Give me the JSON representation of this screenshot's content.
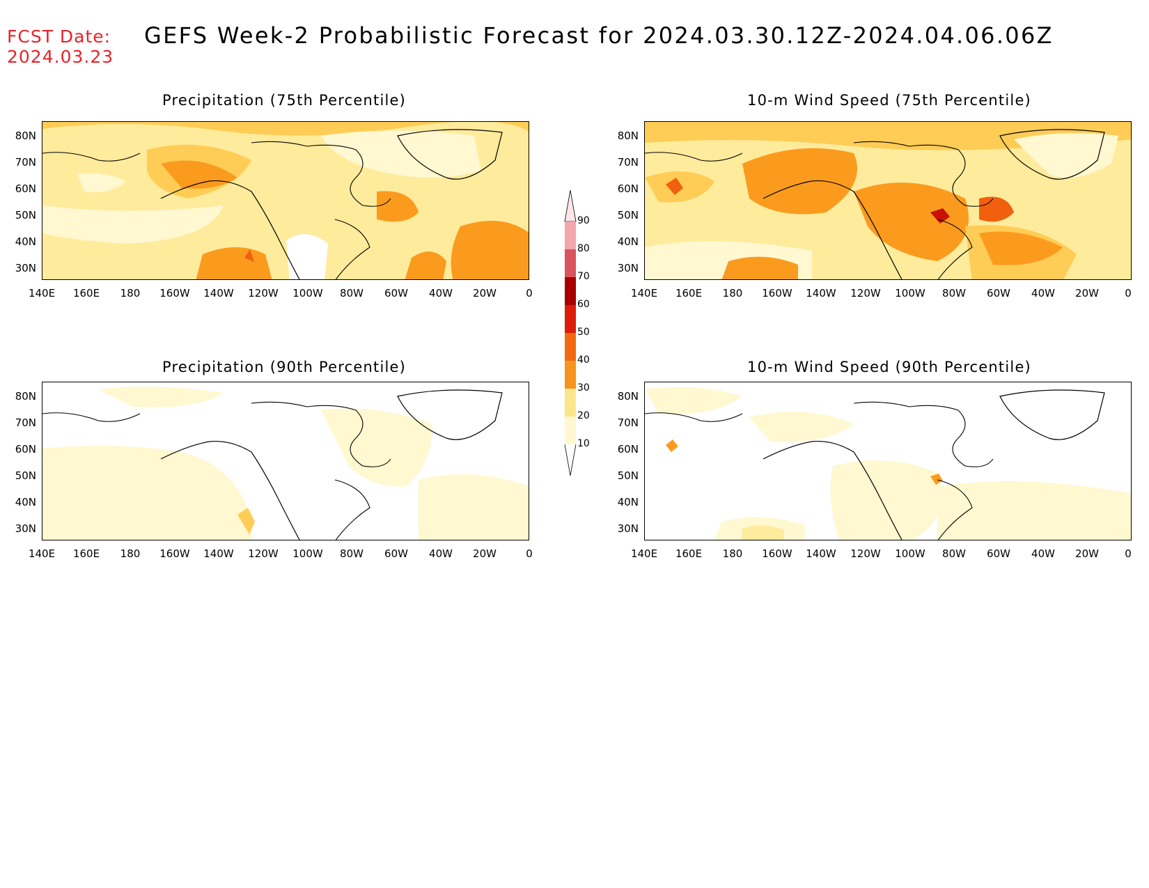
{
  "header": {
    "fcst_label": "FCST Date:",
    "fcst_date": "2024.03.23",
    "title": "GEFS Week-2 Probabilistic Forecast for 2024.03.30.12Z-2024.04.06.06Z"
  },
  "axes": {
    "lat_labels": [
      "80N",
      "70N",
      "60N",
      "50N",
      "40N",
      "30N"
    ],
    "lon_labels": [
      "140E",
      "160E",
      "180",
      "160W",
      "140W",
      "120W",
      "100W",
      "80W",
      "60W",
      "40W",
      "20W",
      "0"
    ]
  },
  "panels": [
    {
      "title": "Precipitation (75th Percentile)"
    },
    {
      "title": "10-m Wind Speed (75th Percentile)"
    },
    {
      "title": "Precipitation (90th Percentile)"
    },
    {
      "title": "10-m Wind Speed (90th Percentile)"
    }
  ],
  "colorbar": {
    "levels": [
      "10",
      "20",
      "30",
      "40",
      "50",
      "60",
      "70",
      "80",
      "90"
    ],
    "colors": [
      "#fff8d0",
      "#fde68a",
      "#fbbf3a",
      "#f7941d",
      "#f26a10",
      "#dc1d0a",
      "#a80000",
      "#d9545c",
      "#f2a6ae",
      "#fde6e8"
    ]
  },
  "palette": {
    "p10": "#fff8d0",
    "p20": "#ffeb9c",
    "p30": "#ffcc55",
    "p40": "#fb9b1e",
    "p50": "#f0600e",
    "p60": "#c81205",
    "header_red": "#e8232a"
  }
}
